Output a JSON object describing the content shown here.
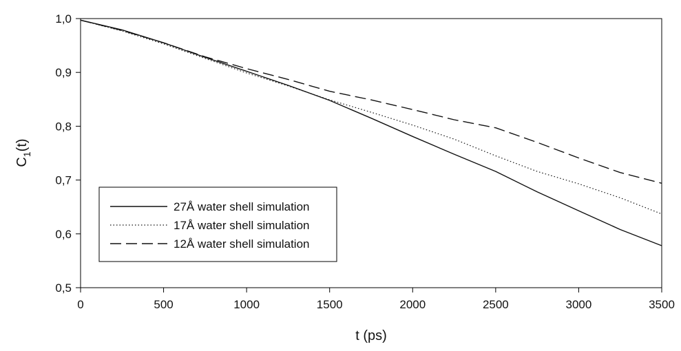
{
  "chart_data": {
    "type": "line",
    "xlabel": "t (ps)",
    "ylabel_main": "C",
    "ylabel_sub": "1",
    "ylabel_tail": "(t)",
    "xlim": [
      0,
      3500
    ],
    "ylim": [
      0.5,
      1.0
    ],
    "grid": false,
    "legend_position": "bottom-left",
    "x_ticks": [
      0,
      500,
      1000,
      1500,
      2000,
      2500,
      3000,
      3500
    ],
    "x_tick_labels": [
      "0",
      "500",
      "1000",
      "1500",
      "2000",
      "2500",
      "3000",
      "3500"
    ],
    "y_ticks": [
      0.5,
      0.6,
      0.7,
      0.8,
      0.9,
      1.0
    ],
    "y_tick_labels": [
      "0,5",
      "0,6",
      "0,7",
      "0,8",
      "0,9",
      "1,0"
    ],
    "x": [
      0,
      250,
      500,
      750,
      1000,
      1250,
      1500,
      1750,
      2000,
      2250,
      2500,
      2750,
      3000,
      3250,
      3500
    ],
    "series": [
      {
        "name": "27Å water shell simulation",
        "style": "solid",
        "values": [
          0.997,
          0.979,
          0.955,
          0.928,
          0.902,
          0.876,
          0.848,
          0.815,
          0.781,
          0.748,
          0.716,
          0.678,
          0.643,
          0.608,
          0.578
        ]
      },
      {
        "name": "17Å water shell simulation",
        "style": "dotted",
        "values": [
          0.997,
          0.977,
          0.953,
          0.926,
          0.899,
          0.875,
          0.849,
          0.826,
          0.802,
          0.776,
          0.745,
          0.716,
          0.693,
          0.667,
          0.637
        ]
      },
      {
        "name": "12Å water shell simulation",
        "style": "dashed",
        "values": [
          0.997,
          0.978,
          0.955,
          0.929,
          0.907,
          0.887,
          0.865,
          0.849,
          0.831,
          0.812,
          0.797,
          0.77,
          0.741,
          0.714,
          0.694
        ]
      }
    ]
  }
}
